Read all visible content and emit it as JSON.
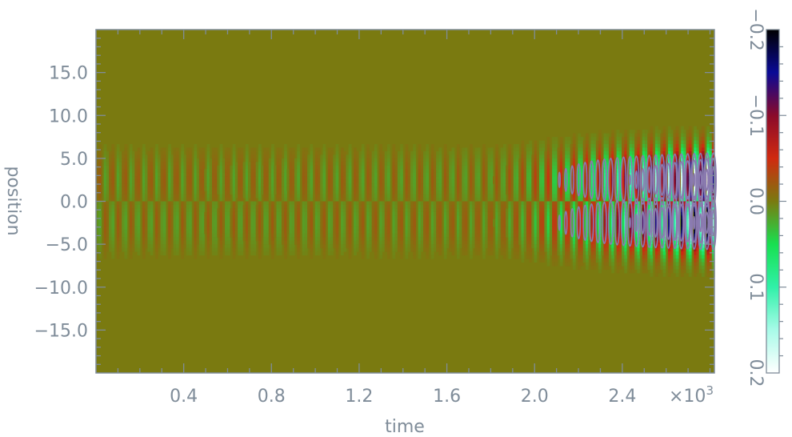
{
  "chart_data": {
    "type": "heatmap",
    "title": "",
    "xlabel": "time",
    "ylabel": "position",
    "x_multiplier_label": "×10",
    "x_multiplier_exponent": "3",
    "xlim": [
      0.0,
      2.82
    ],
    "ylim": [
      -20.0,
      20.0
    ],
    "x_ticks": [
      0.4,
      0.8,
      1.2,
      1.6,
      2.0,
      2.4
    ],
    "x_tick_labels": [
      "0.4",
      "0.8",
      "1.2",
      "1.6",
      "2.0",
      "2.4"
    ],
    "y_ticks": [
      15,
      10,
      5,
      0,
      -5,
      -10,
      -15
    ],
    "y_tick_labels": [
      "15.0",
      "10.0",
      "5.0",
      "0.0",
      "−5.0",
      "−10.0",
      "−15.0"
    ],
    "colorbar": {
      "range": [
        -0.2,
        0.2
      ],
      "ticks": [
        -0.2,
        -0.1,
        0.0,
        0.1,
        0.2
      ],
      "tick_labels": [
        "−0.2",
        "−0.1",
        "0.0",
        "0.1",
        "0.2"
      ],
      "colormap": [
        {
          "value": -0.2,
          "color": "#000000"
        },
        {
          "value": -0.15,
          "color": "#0a0a96"
        },
        {
          "value": -0.1,
          "color": "#8a0a2a"
        },
        {
          "value": -0.05,
          "color": "#d02a10"
        },
        {
          "value": 0.0,
          "color": "#7a7a10"
        },
        {
          "value": 0.05,
          "color": "#18e050"
        },
        {
          "value": 0.1,
          "color": "#30f0a8"
        },
        {
          "value": 0.15,
          "color": "#a8fbe8"
        },
        {
          "value": 0.2,
          "color": "#ffffff"
        }
      ]
    },
    "field": {
      "description_model": "antisymmetric oscillation about position 0, amplitude growing with time",
      "oscillation_period": 0.0585,
      "amplitude_initial": 0.02,
      "amplitude_growth_start": 1.8,
      "amplitude_max": 0.24,
      "spatial_center": 2.5,
      "spatial_width": 3.2
    },
    "contour_color": "#8a7ab0",
    "background_color": "#7a7a10",
    "axis_color": "#7f8c99"
  }
}
